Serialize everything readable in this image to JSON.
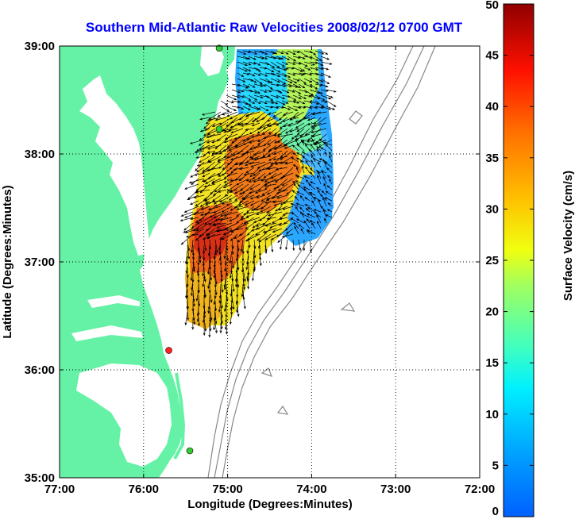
{
  "chart_data": {
    "type": "heatmap",
    "title": "Southern Mid-Atlantic Raw Velocities 2008/02/12 0700 GMT",
    "xlabel": "Longitude (Degrees:Minutes)",
    "ylabel": "Latitude (Degrees:Minutes)",
    "colorbar_label": "Surface Velocity (cm/s)",
    "x_ticks": [
      "77:00",
      "76:00",
      "75:00",
      "74:00",
      "73:00",
      "72:00"
    ],
    "y_ticks": [
      "39:00",
      "38:00",
      "37:00",
      "36:00",
      "35:00"
    ],
    "xlim": [
      -77,
      -72
    ],
    "ylim": [
      35,
      39
    ],
    "clim": [
      0,
      50
    ],
    "colorbar_ticks": [
      "0",
      "5",
      "10",
      "15",
      "20",
      "25",
      "30",
      "35",
      "40",
      "45",
      "50"
    ],
    "grid": true,
    "colormap": "jet",
    "land_color": "#66f2a6",
    "station_markers": [
      {
        "lon": -75.1,
        "lat": 38.98,
        "color": "#33cc33"
      },
      {
        "lon": -75.1,
        "lat": 38.23,
        "color": "#33cc33"
      },
      {
        "lon": -75.7,
        "lat": 36.18,
        "color": "#ff2020"
      },
      {
        "lon": -75.45,
        "lat": 35.25,
        "color": "#33cc33"
      }
    ]
  }
}
